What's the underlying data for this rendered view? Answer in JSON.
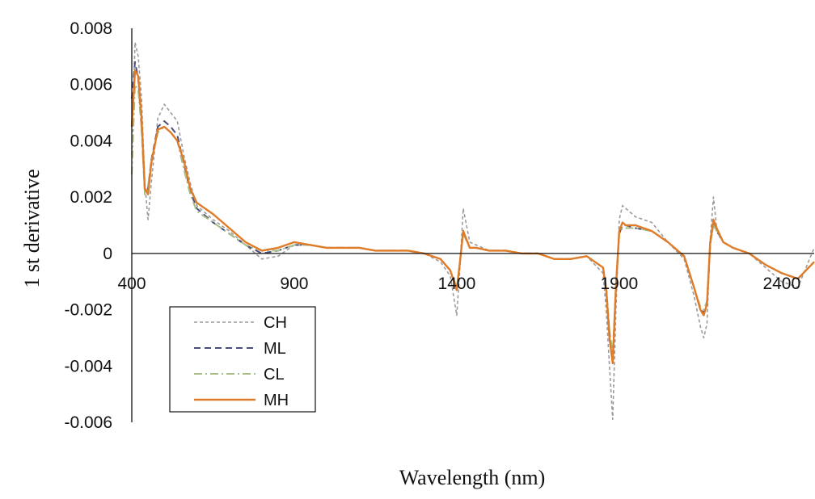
{
  "chart_data": {
    "type": "line",
    "title": "",
    "xlabel": "Wavelength (nm)",
    "ylabel": "1 st derivative",
    "xlim": [
      400,
      2500
    ],
    "ylim": [
      -0.006,
      0.008
    ],
    "x_ticks": [
      400,
      900,
      1400,
      1900,
      2400
    ],
    "x_tick_labels": [
      "400",
      "900",
      "1400",
      "1900",
      "2400"
    ],
    "y_ticks": [
      0.008,
      0.006,
      0.004,
      0.002,
      0,
      -0.002,
      -0.004,
      -0.006
    ],
    "y_tick_labels": [
      "0.008",
      "0.006",
      "0.004",
      "0.002",
      "0",
      "-0.002",
      "-0.004",
      "-0.006"
    ],
    "grid": false,
    "legend_position": "lower-left",
    "series": [
      {
        "name": "CH",
        "color": "#9b9b9b",
        "dash": "dotted",
        "x": [
          400,
          410,
          420,
          430,
          440,
          450,
          460,
          480,
          500,
          520,
          540,
          560,
          580,
          600,
          650,
          700,
          750,
          800,
          850,
          900,
          950,
          1000,
          1050,
          1100,
          1150,
          1200,
          1250,
          1300,
          1350,
          1380,
          1400,
          1410,
          1420,
          1440,
          1460,
          1500,
          1550,
          1600,
          1650,
          1700,
          1750,
          1800,
          1850,
          1860,
          1870,
          1880,
          1890,
          1900,
          1910,
          1920,
          1950,
          2000,
          2050,
          2100,
          2130,
          2150,
          2160,
          2170,
          2180,
          2190,
          2200,
          2220,
          2250,
          2300,
          2350,
          2400,
          2450,
          2500
        ],
        "y": [
          0.0035,
          0.0075,
          0.007,
          0.0055,
          0.0025,
          0.0012,
          0.0025,
          0.0048,
          0.0053,
          0.005,
          0.0047,
          0.0035,
          0.0025,
          0.0017,
          0.0012,
          0.0008,
          0.0003,
          -0.0002,
          -0.0001,
          0.0003,
          0.0003,
          0.0002,
          0.0002,
          0.0002,
          0.0001,
          0.0001,
          0.0001,
          0.0,
          -0.0003,
          -0.0008,
          -0.0022,
          -0.0005,
          0.0016,
          0.0004,
          0.0003,
          0.0001,
          0.0001,
          0.0,
          0.0,
          -0.0002,
          -0.0002,
          -0.0001,
          -0.0007,
          -0.002,
          -0.004,
          -0.0059,
          -0.002,
          0.0012,
          0.0017,
          0.0016,
          0.0013,
          0.0011,
          0.0004,
          -0.0002,
          -0.0015,
          -0.0026,
          -0.003,
          -0.0025,
          0.0005,
          0.002,
          0.0009,
          0.0004,
          0.0002,
          0.0,
          -0.0005,
          -0.001,
          -0.0012,
          0.0002
        ]
      },
      {
        "name": "ML",
        "color": "#4a4e7a",
        "dash": "dashed",
        "x": [
          400,
          410,
          420,
          430,
          440,
          450,
          460,
          480,
          500,
          520,
          540,
          560,
          580,
          600,
          650,
          700,
          750,
          800,
          850,
          900,
          950,
          1000,
          1050,
          1100,
          1150,
          1200,
          1250,
          1300,
          1350,
          1380,
          1400,
          1410,
          1420,
          1440,
          1460,
          1500,
          1550,
          1600,
          1650,
          1700,
          1750,
          1800,
          1850,
          1860,
          1870,
          1880,
          1890,
          1900,
          1910,
          1920,
          1950,
          2000,
          2050,
          2100,
          2130,
          2150,
          2160,
          2170,
          2180,
          2190,
          2200,
          2220,
          2250,
          2300,
          2350,
          2400,
          2450,
          2500
        ],
        "y": [
          0.0055,
          0.0068,
          0.0062,
          0.0045,
          0.0022,
          0.0023,
          0.0033,
          0.0045,
          0.0047,
          0.0045,
          0.0042,
          0.0032,
          0.0022,
          0.0016,
          0.0011,
          0.0007,
          0.0003,
          0.0,
          0.0001,
          0.0003,
          0.0003,
          0.0002,
          0.0002,
          0.0002,
          0.0001,
          0.0001,
          0.0001,
          0.0,
          -0.0002,
          -0.0006,
          -0.0013,
          -0.0003,
          0.0008,
          0.0002,
          0.0002,
          0.0001,
          0.0001,
          0.0,
          0.0,
          -0.0002,
          -0.0002,
          -0.0001,
          -0.0005,
          -0.0012,
          -0.0028,
          -0.0038,
          -0.0012,
          0.0007,
          0.001,
          0.001,
          0.0009,
          0.0008,
          0.0004,
          -0.0001,
          -0.0012,
          -0.002,
          -0.0021,
          -0.0018,
          0.0003,
          0.0011,
          0.0008,
          0.0004,
          0.0002,
          0.0,
          -0.0004,
          -0.0007,
          -0.0009,
          -0.0003
        ]
      },
      {
        "name": "CL",
        "color": "#a8be86",
        "dash": "dashdot",
        "x": [
          400,
          410,
          420,
          430,
          440,
          450,
          460,
          480,
          500,
          520,
          540,
          560,
          580,
          600,
          650,
          700,
          750,
          800,
          850,
          900,
          950,
          1000,
          1050,
          1100,
          1150,
          1200,
          1250,
          1300,
          1350,
          1380,
          1400,
          1410,
          1420,
          1440,
          1460,
          1500,
          1550,
          1600,
          1650,
          1700,
          1750,
          1800,
          1850,
          1860,
          1870,
          1880,
          1890,
          1900,
          1910,
          1920,
          1950,
          2000,
          2050,
          2100,
          2130,
          2150,
          2160,
          2170,
          2180,
          2190,
          2200,
          2220,
          2250,
          2300,
          2350,
          2400,
          2450,
          2500
        ],
        "y": [
          0.0028,
          0.006,
          0.0058,
          0.0044,
          0.0021,
          0.0024,
          0.0033,
          0.0043,
          0.0045,
          0.0043,
          0.004,
          0.003,
          0.0021,
          0.0015,
          0.0011,
          0.0007,
          0.0003,
          0.0001,
          0.0001,
          0.0003,
          0.0003,
          0.0002,
          0.0002,
          0.0002,
          0.0001,
          0.0001,
          0.0001,
          0.0,
          -0.0002,
          -0.0006,
          -0.0012,
          -0.0003,
          0.0007,
          0.0002,
          0.0002,
          0.0001,
          0.0001,
          0.0,
          0.0,
          -0.0002,
          -0.0002,
          -0.0001,
          -0.0005,
          -0.0012,
          -0.0027,
          -0.0036,
          -0.0011,
          0.0007,
          0.0009,
          0.0009,
          0.0009,
          0.0008,
          0.0004,
          -0.0001,
          -0.0012,
          -0.0019,
          -0.002,
          -0.0017,
          0.0003,
          0.001,
          0.0008,
          0.0004,
          0.0002,
          0.0,
          -0.0004,
          -0.0007,
          -0.0009,
          -0.0003
        ]
      },
      {
        "name": "MH",
        "color": "#e07b27",
        "dash": "solid",
        "x": [
          400,
          410,
          420,
          430,
          440,
          450,
          460,
          480,
          500,
          520,
          540,
          560,
          580,
          600,
          650,
          700,
          750,
          800,
          850,
          900,
          950,
          1000,
          1050,
          1100,
          1150,
          1200,
          1250,
          1300,
          1350,
          1380,
          1400,
          1410,
          1420,
          1440,
          1460,
          1500,
          1550,
          1600,
          1650,
          1700,
          1750,
          1800,
          1850,
          1860,
          1870,
          1880,
          1890,
          1900,
          1910,
          1920,
          1950,
          2000,
          2050,
          2100,
          2130,
          2150,
          2160,
          2170,
          2180,
          2190,
          2200,
          2220,
          2250,
          2300,
          2350,
          2400,
          2450,
          2500
        ],
        "y": [
          0.0045,
          0.0065,
          0.0063,
          0.0048,
          0.0023,
          0.0021,
          0.0032,
          0.0044,
          0.0045,
          0.0043,
          0.004,
          0.0033,
          0.0023,
          0.0018,
          0.0014,
          0.0009,
          0.0004,
          0.0001,
          0.0002,
          0.0004,
          0.0003,
          0.0002,
          0.0002,
          0.0002,
          0.0001,
          0.0001,
          0.0001,
          0.0,
          -0.0002,
          -0.0006,
          -0.0013,
          -0.0003,
          0.0008,
          0.0002,
          0.0002,
          0.0001,
          0.0001,
          0.0,
          0.0,
          -0.0002,
          -0.0002,
          -0.0001,
          -0.0005,
          -0.0013,
          -0.003,
          -0.0039,
          -0.0012,
          0.0008,
          0.0011,
          0.001,
          0.001,
          0.0008,
          0.0004,
          -0.0001,
          -0.0012,
          -0.002,
          -0.0022,
          -0.0018,
          0.0004,
          0.0012,
          0.0009,
          0.0004,
          0.0002,
          0.0,
          -0.0004,
          -0.0007,
          -0.0009,
          -0.0003
        ]
      }
    ]
  }
}
